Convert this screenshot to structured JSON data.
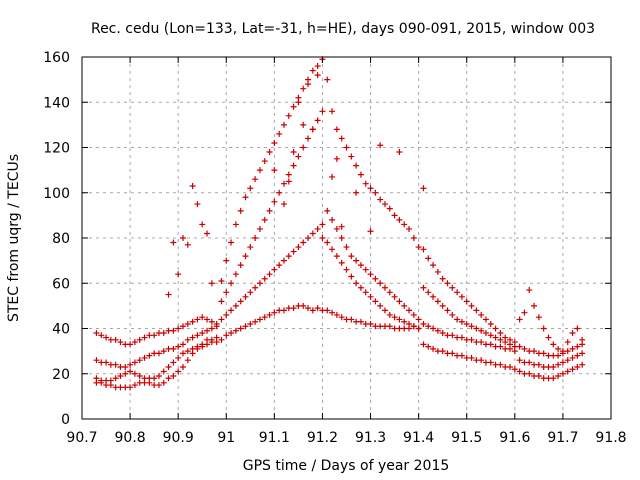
{
  "chart_data": {
    "type": "scatter",
    "title": "Rec. cedu (Lon=133, Lat=-31, h=HE), days 090-091, 2015, window 003",
    "xlabel": "GPS time / Days of year 2015",
    "ylabel": "STEC from uqrg / TECUs",
    "xlim": [
      90.7,
      91.8
    ],
    "ylim": [
      0,
      160
    ],
    "xticks": [
      "90.7",
      "90.8",
      "90.9",
      "91",
      "91.1",
      "91.2",
      "91.3",
      "91.4",
      "91.5",
      "91.6",
      "91.7",
      "91.8"
    ],
    "yticks": [
      "0",
      "20",
      "40",
      "60",
      "80",
      "100",
      "120",
      "140",
      "160"
    ],
    "grid": true,
    "legend": "none",
    "marker": "plus",
    "marker_color": "#cc0000",
    "series": [
      {
        "x": [
          90.73,
          90.74,
          90.75,
          90.76,
          90.77,
          90.78,
          90.79,
          90.8,
          90.81,
          90.82,
          90.83,
          90.84,
          90.85,
          90.86,
          90.87,
          90.88,
          90.89,
          90.9,
          90.91,
          90.92,
          90.93,
          90.94,
          90.95,
          90.96,
          90.97,
          90.98,
          90.73,
          90.74,
          90.75,
          90.76,
          90.77,
          90.78,
          90.79,
          90.8,
          90.81,
          90.82,
          90.83,
          90.84,
          90.85,
          90.86,
          90.87,
          90.88,
          90.89,
          90.9,
          90.91,
          90.92,
          90.93,
          90.94,
          90.95,
          90.96,
          90.97,
          90.98,
          90.73,
          90.74,
          90.75,
          90.76,
          90.77,
          90.78,
          90.79,
          90.8,
          90.81,
          90.82,
          90.83,
          90.84,
          90.85,
          90.86,
          90.87,
          90.88,
          90.89,
          90.9,
          90.91,
          90.92,
          90.93,
          90.94,
          90.95,
          90.96,
          90.97,
          90.98,
          90.73,
          90.74,
          90.75,
          90.76,
          90.77,
          90.78,
          90.79,
          90.8,
          90.81,
          90.82,
          90.83,
          90.84,
          90.85,
          90.86,
          90.87,
          90.88,
          90.89,
          90.9,
          90.91,
          90.92,
          90.93,
          90.94,
          90.95,
          90.96,
          90.97,
          90.98,
          90.88,
          90.89,
          90.9,
          90.91,
          90.92,
          90.93,
          90.94,
          90.95,
          90.96,
          90.97,
          90.99,
          91.0,
          91.01,
          91.02,
          91.03,
          91.04,
          91.05,
          91.06,
          91.07,
          91.08,
          91.09,
          91.1,
          91.11,
          91.12,
          91.13,
          91.14,
          91.15,
          91.16,
          91.17,
          91.18,
          91.19,
          91.2,
          90.99,
          91.0,
          91.01,
          91.02,
          91.03,
          91.04,
          91.05,
          91.06,
          91.07,
          91.08,
          91.09,
          91.1,
          91.11,
          91.12,
          91.13,
          91.14,
          91.15,
          91.16,
          91.17,
          91.18,
          91.19,
          91.2,
          90.99,
          91.0,
          91.01,
          91.02,
          91.03,
          91.04,
          91.05,
          91.06,
          91.07,
          91.08,
          91.09,
          91.1,
          91.11,
          91.12,
          91.13,
          91.14,
          91.15,
          91.16,
          91.17,
          91.18,
          91.19,
          91.2,
          90.99,
          91.0,
          91.01,
          91.02,
          91.03,
          91.04,
          91.05,
          91.06,
          91.07,
          91.08,
          91.09,
          91.1,
          91.11,
          91.12,
          91.13,
          91.14,
          91.15,
          91.16,
          91.17,
          91.18,
          91.19,
          91.2,
          91.1,
          91.12,
          91.13,
          91.14,
          91.15,
          91.16,
          91.17,
          91.18,
          91.19,
          91.2,
          91.22,
          91.23,
          91.21,
          91.22,
          91.23,
          91.24,
          91.25,
          91.26,
          91.27,
          91.28,
          91.29,
          91.3,
          91.31,
          91.32,
          91.33,
          91.34,
          91.35,
          91.36,
          91.37,
          91.38,
          91.39,
          91.4,
          91.21,
          91.22,
          91.23,
          91.24,
          91.25,
          91.26,
          91.27,
          91.28,
          91.29,
          91.3,
          91.31,
          91.32,
          91.33,
          91.34,
          91.35,
          91.36,
          91.37,
          91.38,
          91.39,
          91.4,
          91.21,
          91.22,
          91.23,
          91.24,
          91.25,
          91.26,
          91.27,
          91.28,
          91.29,
          91.3,
          91.31,
          91.32,
          91.33,
          91.34,
          91.35,
          91.36,
          91.37,
          91.38,
          91.39,
          91.4,
          91.21,
          91.22,
          91.23,
          91.24,
          91.25,
          91.26,
          91.27,
          91.28,
          91.29,
          91.3,
          91.31,
          91.32,
          91.33,
          91.34,
          91.35,
          91.36,
          91.37,
          91.38,
          91.39,
          91.4,
          91.24,
          91.27,
          91.3,
          91.32,
          91.36,
          91.41,
          91.41,
          91.42,
          91.43,
          91.44,
          91.45,
          91.46,
          91.47,
          91.48,
          91.49,
          91.5,
          91.51,
          91.52,
          91.53,
          91.54,
          91.55,
          91.56,
          91.57,
          91.58,
          91.59,
          91.6,
          91.41,
          91.42,
          91.43,
          91.44,
          91.45,
          91.46,
          91.47,
          91.48,
          91.49,
          91.5,
          91.51,
          91.52,
          91.53,
          91.54,
          91.55,
          91.56,
          91.57,
          91.58,
          91.59,
          91.6,
          91.41,
          91.42,
          91.43,
          91.44,
          91.45,
          91.46,
          91.47,
          91.48,
          91.49,
          91.5,
          91.51,
          91.52,
          91.53,
          91.54,
          91.55,
          91.56,
          91.57,
          91.58,
          91.59,
          91.6,
          91.41,
          91.42,
          91.43,
          91.44,
          91.45,
          91.46,
          91.47,
          91.48,
          91.49,
          91.5,
          91.51,
          91.52,
          91.53,
          91.54,
          91.55,
          91.56,
          91.57,
          91.58,
          91.59,
          91.6,
          91.61,
          91.62,
          91.63,
          91.64,
          91.65,
          91.66,
          91.67,
          91.68,
          91.69,
          91.7,
          91.71,
          91.72,
          91.73,
          91.74,
          91.61,
          91.62,
          91.63,
          91.64,
          91.65,
          91.66,
          91.67,
          91.68,
          91.69,
          91.7,
          91.71,
          91.72,
          91.73,
          91.74,
          91.61,
          91.62,
          91.63,
          91.64,
          91.65,
          91.66,
          91.67,
          91.68,
          91.69,
          91.7,
          91.71,
          91.72,
          91.73,
          91.74,
          91.61,
          91.62,
          91.63,
          91.64,
          91.65,
          91.66,
          91.67,
          91.68,
          91.69,
          91.7,
          91.71,
          91.72,
          91.73,
          91.74
        ],
        "y": [
          16,
          16,
          15,
          15,
          14,
          14,
          14,
          14,
          15,
          16,
          16,
          16,
          15,
          15,
          16,
          18,
          19,
          21,
          23,
          26,
          29,
          31,
          32,
          33,
          34,
          34,
          18,
          17,
          17,
          17,
          18,
          19,
          20,
          21,
          20,
          19,
          18,
          18,
          18,
          19,
          21,
          23,
          25,
          27,
          29,
          30,
          31,
          32,
          33,
          35,
          35,
          36,
          26,
          25,
          25,
          24,
          24,
          23,
          23,
          24,
          25,
          26,
          27,
          28,
          29,
          29,
          30,
          31,
          31,
          32,
          33,
          35,
          36,
          37,
          38,
          39,
          40,
          41,
          38,
          37,
          36,
          35,
          35,
          34,
          33,
          33,
          34,
          35,
          36,
          37,
          37,
          38,
          38,
          39,
          39,
          40,
          41,
          42,
          43,
          44,
          45,
          44,
          43,
          42,
          55,
          78,
          64,
          80,
          77,
          103,
          95,
          86,
          82,
          60,
          35,
          37,
          38,
          39,
          40,
          41,
          42,
          43,
          44,
          45,
          46,
          47,
          48,
          48,
          49,
          49,
          50,
          50,
          49,
          48,
          49,
          48,
          44,
          46,
          48,
          50,
          52,
          54,
          56,
          58,
          60,
          62,
          64,
          66,
          68,
          70,
          72,
          74,
          76,
          78,
          80,
          82,
          84,
          86,
          52,
          56,
          60,
          64,
          68,
          72,
          76,
          80,
          84,
          88,
          92,
          96,
          100,
          104,
          108,
          112,
          116,
          120,
          124,
          128,
          132,
          136,
          61,
          70,
          78,
          86,
          92,
          98,
          102,
          106,
          110,
          114,
          118,
          122,
          126,
          130,
          134,
          138,
          142,
          146,
          150,
          154,
          156,
          159,
          110,
          95,
          105,
          118,
          140,
          130,
          148,
          128,
          152,
          80,
          107,
          115,
          48,
          47,
          46,
          45,
          44,
          44,
          43,
          43,
          42,
          42,
          41,
          41,
          41,
          41,
          40,
          40,
          40,
          40,
          41,
          40,
          78,
          75,
          72,
          69,
          66,
          63,
          60,
          58,
          56,
          54,
          52,
          50,
          48,
          46,
          45,
          44,
          43,
          42,
          41,
          40,
          92,
          88,
          84,
          80,
          76,
          72,
          70,
          68,
          66,
          64,
          62,
          60,
          58,
          56,
          54,
          52,
          50,
          48,
          46,
          44,
          150,
          136,
          128,
          124,
          120,
          116,
          112,
          108,
          104,
          102,
          100,
          97,
          95,
          93,
          90,
          88,
          86,
          84,
          80,
          76,
          85,
          100,
          83,
          121,
          118,
          102,
          33,
          32,
          31,
          30,
          30,
          29,
          29,
          28,
          28,
          27,
          27,
          26,
          26,
          25,
          25,
          24,
          24,
          23,
          23,
          22,
          42,
          41,
          40,
          39,
          38,
          37,
          37,
          36,
          36,
          35,
          35,
          34,
          34,
          33,
          33,
          32,
          32,
          31,
          31,
          30,
          58,
          56,
          54,
          52,
          50,
          48,
          46,
          44,
          43,
          42,
          41,
          40,
          39,
          38,
          37,
          36,
          35,
          34,
          33,
          32,
          75,
          71,
          68,
          65,
          62,
          60,
          58,
          56,
          54,
          52,
          50,
          48,
          46,
          44,
          42,
          40,
          38,
          36,
          35,
          34,
          21,
          20,
          20,
          19,
          19,
          18,
          18,
          18,
          19,
          20,
          21,
          22,
          23,
          24,
          26,
          25,
          25,
          24,
          24,
          23,
          23,
          23,
          24,
          25,
          26,
          27,
          28,
          29,
          32,
          31,
          30,
          30,
          29,
          29,
          28,
          28,
          28,
          29,
          30,
          31,
          32,
          33,
          44,
          47,
          57,
          50,
          45,
          40,
          36,
          33,
          31,
          30,
          34,
          38,
          40,
          35
        ]
      }
    ]
  }
}
